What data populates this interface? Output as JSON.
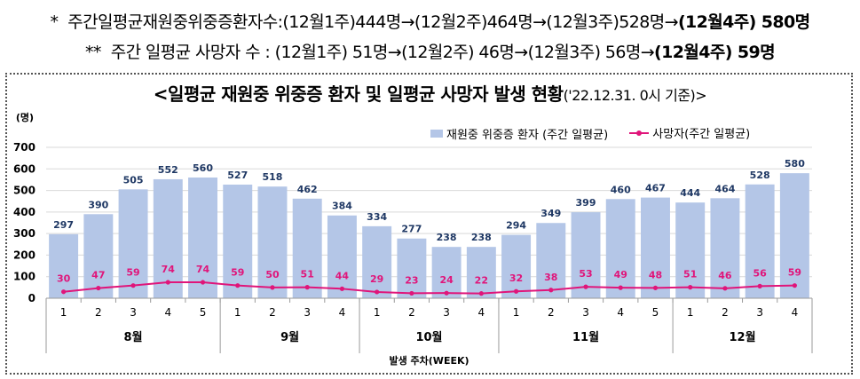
{
  "notes": {
    "line1_marker": "*",
    "line1_text": "주간일평균재원중위중증환자수:(12월1주)444명→(12월2주)464명→(12월3주)528명→",
    "line1_last": "(12월4주) 580명",
    "line2_marker": "**",
    "line2_text": "주간 일평균 사망자 수 : (12월1주) 51명→(12월2주) 46명→(12월3주) 56명→",
    "line2_last": "(12월4주) 59명"
  },
  "chart_title": "<일평균 재원중 위중증 환자 및 일평균 사망자 발생 현황",
  "chart_subtitle": "('22.12.31. 0시 기준)>",
  "colors": {
    "bar": "#b4c6e7",
    "line": "#e0157a",
    "bar_label": "#1f3864",
    "line_label": "#e0157a"
  },
  "chart_data": {
    "type": "bar",
    "title": "<일평균 재원중 위중증 환자 및 일평균 사망자 발생 현황('22.12.31. 0시 기준)>",
    "ylabel": "(명)",
    "xlabel": "발생 주차(WEEK)",
    "ylim": [
      0,
      700
    ],
    "yticks": [
      0,
      100,
      200,
      300,
      400,
      500,
      600,
      700
    ],
    "grid": true,
    "legend_position": "top-right",
    "categories": [
      "1",
      "2",
      "3",
      "4",
      "5",
      "1",
      "2",
      "3",
      "4",
      "1",
      "2",
      "3",
      "4",
      "1",
      "2",
      "3",
      "4",
      "5",
      "1",
      "2",
      "3",
      "4"
    ],
    "groups": [
      {
        "label": "8월",
        "count": 5
      },
      {
        "label": "9월",
        "count": 4
      },
      {
        "label": "10월",
        "count": 4
      },
      {
        "label": "11월",
        "count": 5
      },
      {
        "label": "12월",
        "count": 4
      }
    ],
    "series": [
      {
        "name": "재원중 위중증 환자 (주간 일평균)",
        "type": "bar",
        "values": [
          297,
          390,
          505,
          552,
          560,
          527,
          518,
          462,
          384,
          334,
          277,
          238,
          238,
          294,
          349,
          399,
          460,
          467,
          444,
          464,
          528,
          580
        ]
      },
      {
        "name": "사망자(주간 일평균)",
        "type": "line",
        "values": [
          30,
          47,
          59,
          74,
          74,
          59,
          50,
          51,
          44,
          29,
          23,
          24,
          22,
          32,
          38,
          53,
          49,
          48,
          51,
          46,
          56,
          59
        ]
      }
    ]
  }
}
